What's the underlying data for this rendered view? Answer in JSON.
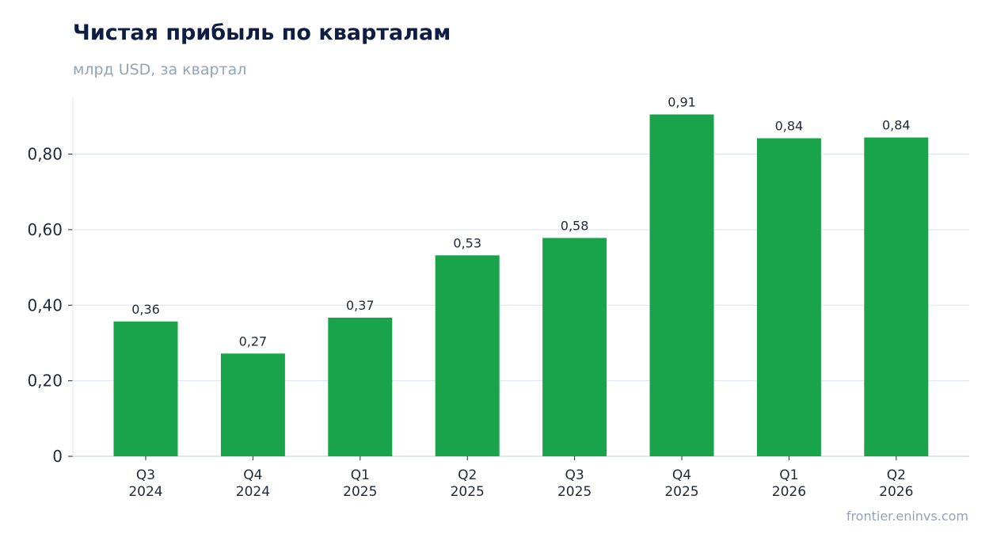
{
  "chart_data": {
    "type": "bar",
    "title": "Чистая прибыль по кварталам",
    "subtitle": "млрд USD, за квартал",
    "categories": [
      [
        "Q3",
        "2024"
      ],
      [
        "Q4",
        "2024"
      ],
      [
        "Q1",
        "2025"
      ],
      [
        "Q2",
        "2025"
      ],
      [
        "Q3",
        "2025"
      ],
      [
        "Q4",
        "2025"
      ],
      [
        "Q1",
        "2026"
      ],
      [
        "Q2",
        "2026"
      ]
    ],
    "values": [
      0.357,
      0.272,
      0.367,
      0.532,
      0.578,
      0.905,
      0.842,
      0.844
    ],
    "data_labels": [
      "0,36",
      "0,27",
      "0,37",
      "0,53",
      "0,58",
      "0,91",
      "0,84",
      "0,84"
    ],
    "yticks": [
      0,
      0.2,
      0.4,
      0.6,
      0.8
    ],
    "ytick_labels": [
      "0",
      "0,20",
      "0,40",
      "0,60",
      "0,80"
    ],
    "ylim": [
      0,
      0.95
    ],
    "grid": true,
    "legend": "none",
    "colors": {
      "bar": "#19a44b",
      "grid": "#e2e8f0",
      "axis": "#cbd5e1",
      "title": "#0f1d45",
      "muted": "#94a3b8"
    }
  },
  "source": "frontier.eninvs.com"
}
